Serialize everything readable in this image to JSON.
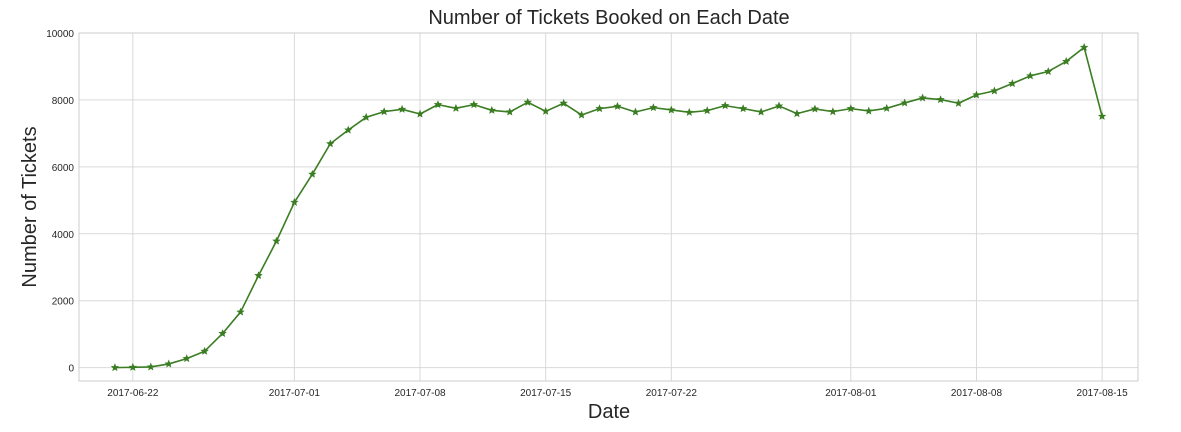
{
  "chart_data": {
    "type": "line",
    "title": "Number of Tickets Booked on Each Date",
    "xlabel": "Date",
    "ylabel": "Number of Tickets",
    "xlim": [
      "2017-06-19",
      "2017-08-17"
    ],
    "ylim": [
      -400,
      10000
    ],
    "x_ticks": [
      "2017-06-22",
      "2017-07-01",
      "2017-07-08",
      "2017-07-15",
      "2017-07-22",
      "2017-08-01",
      "2017-08-08",
      "2017-08-15"
    ],
    "y_ticks": [
      0,
      2000,
      4000,
      6000,
      8000,
      10000
    ],
    "grid": true,
    "marker": "star",
    "color": "#3a7d22",
    "x": [
      "2017-06-21",
      "2017-06-22",
      "2017-06-23",
      "2017-06-24",
      "2017-06-25",
      "2017-06-26",
      "2017-06-27",
      "2017-06-28",
      "2017-06-29",
      "2017-06-30",
      "2017-07-01",
      "2017-07-02",
      "2017-07-03",
      "2017-07-04",
      "2017-07-05",
      "2017-07-06",
      "2017-07-07",
      "2017-07-08",
      "2017-07-09",
      "2017-07-10",
      "2017-07-11",
      "2017-07-12",
      "2017-07-13",
      "2017-07-14",
      "2017-07-15",
      "2017-07-16",
      "2017-07-17",
      "2017-07-18",
      "2017-07-19",
      "2017-07-20",
      "2017-07-21",
      "2017-07-22",
      "2017-07-23",
      "2017-07-24",
      "2017-07-25",
      "2017-07-26",
      "2017-07-27",
      "2017-07-28",
      "2017-07-29",
      "2017-07-30",
      "2017-07-31",
      "2017-08-01",
      "2017-08-02",
      "2017-08-03",
      "2017-08-04",
      "2017-08-05",
      "2017-08-06",
      "2017-08-07",
      "2017-08-08",
      "2017-08-09",
      "2017-08-10",
      "2017-08-11",
      "2017-08-12",
      "2017-08-13",
      "2017-08-14",
      "2017-08-15"
    ],
    "y": [
      0,
      10,
      20,
      110,
      270,
      490,
      1020,
      1660,
      2750,
      3780,
      4940,
      5780,
      6690,
      7100,
      7480,
      7650,
      7720,
      7580,
      7860,
      7750,
      7860,
      7690,
      7640,
      7930,
      7660,
      7900,
      7550,
      7740,
      7810,
      7640,
      7770,
      7700,
      7630,
      7680,
      7830,
      7740,
      7640,
      7820,
      7590,
      7730,
      7650,
      7740,
      7670,
      7750,
      7910,
      8060,
      8010,
      7900,
      8150,
      8270,
      8490,
      8720,
      8850,
      9150,
      9570,
      7510
    ]
  }
}
